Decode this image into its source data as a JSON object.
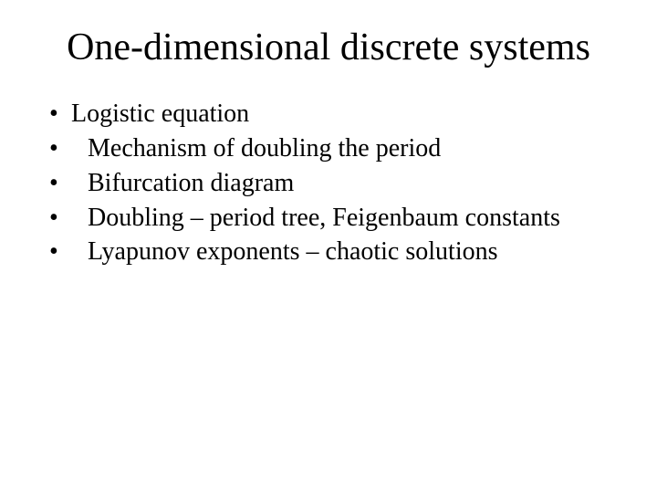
{
  "slide": {
    "title": "One-dimensional discrete systems",
    "bullets": [
      {
        "text": "Logistic equation",
        "indent": 1
      },
      {
        "text": "Mechanism of doubling the period",
        "indent": 2
      },
      {
        "text": "Bifurcation diagram",
        "indent": 2
      },
      {
        "text": "Doubling – period tree, Feigenbaum constants",
        "indent": 2
      },
      {
        "text": "Lyapunov exponents – chaotic solutions",
        "indent": 2
      }
    ],
    "title_fontsize": 42,
    "body_fontsize": 28,
    "background_color": "#ffffff",
    "text_color": "#000000",
    "font_family": "Times New Roman"
  }
}
